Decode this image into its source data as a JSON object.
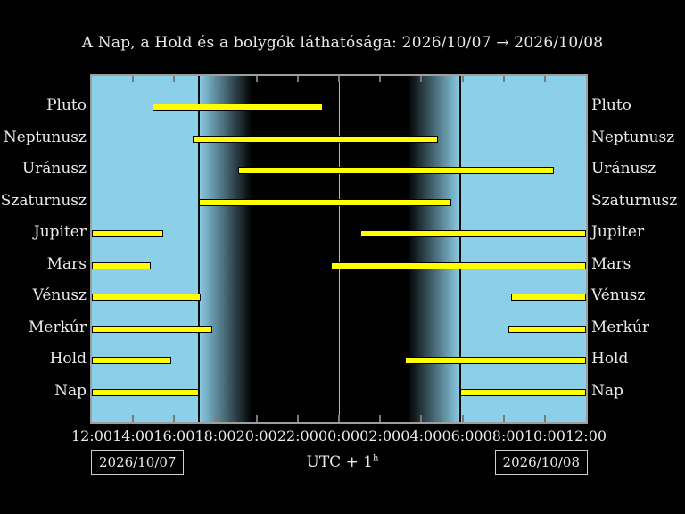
{
  "title": "A Nap, a Hold és a bolygók láthatósága: 2026/10/07 → 2026/10/08",
  "footer": {
    "left_date": "2026/10/07",
    "right_date": "2026/10/08",
    "utc_label": "UTC + 1",
    "utc_sup": "h"
  },
  "chart_data": {
    "type": "gantt-visibility",
    "title": "A Nap, a Hold és a bolygók láthatósága: 2026/10/07 → 2026/10/08",
    "x_axis": {
      "tick_labels": [
        "12:00",
        "14:00",
        "16:00",
        "18:00",
        "20:00",
        "22:00",
        "00:00",
        "02:00",
        "04:00",
        "06:00",
        "08:00",
        "10:00",
        "12:00"
      ],
      "hours_span": 24,
      "tick_interval_h": 2,
      "note": "hours measured from 12:00 local time (UTC+1), spanning to 12:00 next day"
    },
    "rows": [
      {
        "label": "Pluto",
        "segments": [
          [
            2.93,
            11.2
          ]
        ],
        "segments_hhmm": [
          [
            "14:56",
            "23:12"
          ]
        ]
      },
      {
        "label": "Neptunusz",
        "segments": [
          [
            4.88,
            16.83
          ]
        ],
        "segments_hhmm": [
          [
            "16:53",
            "04:50"
          ]
        ]
      },
      {
        "label": "Uránusz",
        "segments": [
          [
            7.12,
            22.44
          ]
        ],
        "segments_hhmm": [
          [
            "19:07",
            "10:26"
          ]
        ]
      },
      {
        "label": "Szaturnusz",
        "segments": [
          [
            5.22,
            17.48
          ]
        ],
        "segments_hhmm": [
          [
            "17:13",
            "05:29"
          ]
        ]
      },
      {
        "label": "Jupiter",
        "segments": [
          [
            0,
            3.45
          ],
          [
            13.03,
            24
          ]
        ],
        "segments_hhmm": [
          [
            "12:00",
            "15:27"
          ],
          [
            "01:02",
            "12:00"
          ]
        ]
      },
      {
        "label": "Mars",
        "segments": [
          [
            0,
            2.85
          ],
          [
            11.61,
            24
          ]
        ],
        "segments_hhmm": [
          [
            "12:00",
            "14:51"
          ],
          [
            "23:37",
            "12:00"
          ]
        ]
      },
      {
        "label": "Vénusz",
        "segments": [
          [
            0,
            5.27
          ],
          [
            20.37,
            24
          ]
        ],
        "segments_hhmm": [
          [
            "12:00",
            "17:16"
          ],
          [
            "08:22",
            "12:00"
          ]
        ]
      },
      {
        "label": "Merkúr",
        "segments": [
          [
            0,
            5.83
          ],
          [
            20.24,
            24
          ]
        ],
        "segments_hhmm": [
          [
            "12:00",
            "17:50"
          ],
          [
            "08:14",
            "12:00"
          ]
        ]
      },
      {
        "label": "Hold",
        "segments": [
          [
            0,
            3.84
          ],
          [
            15.19,
            24
          ]
        ],
        "segments_hhmm": [
          [
            "12:00",
            "15:50"
          ],
          [
            "03:11",
            "12:00"
          ]
        ]
      },
      {
        "label": "Nap",
        "segments": [
          [
            0,
            5.18
          ],
          [
            17.9,
            24
          ]
        ],
        "segments_hhmm": [
          [
            "12:00",
            "17:11"
          ],
          [
            "05:54",
            "12:00"
          ]
        ]
      }
    ],
    "night": {
      "sunset_h": 5.18,
      "dusk_black_h": 7.8,
      "dawn_start_h": 15.33,
      "sunrise_h": 17.9,
      "midnight_h": 12,
      "sunset_hhmm": "17:11",
      "sunrise_hhmm": "05:54"
    },
    "colors": {
      "day": "#8ccfe8",
      "night": "#000000",
      "bar": "#ffff00",
      "bar_border": "#000000",
      "frame": "#9e9e9e",
      "tick": "#7a7a7a",
      "midnight_line": "#b4b4b4",
      "twilight_line": "#0d0d0d",
      "text": "#ebebeb"
    }
  }
}
